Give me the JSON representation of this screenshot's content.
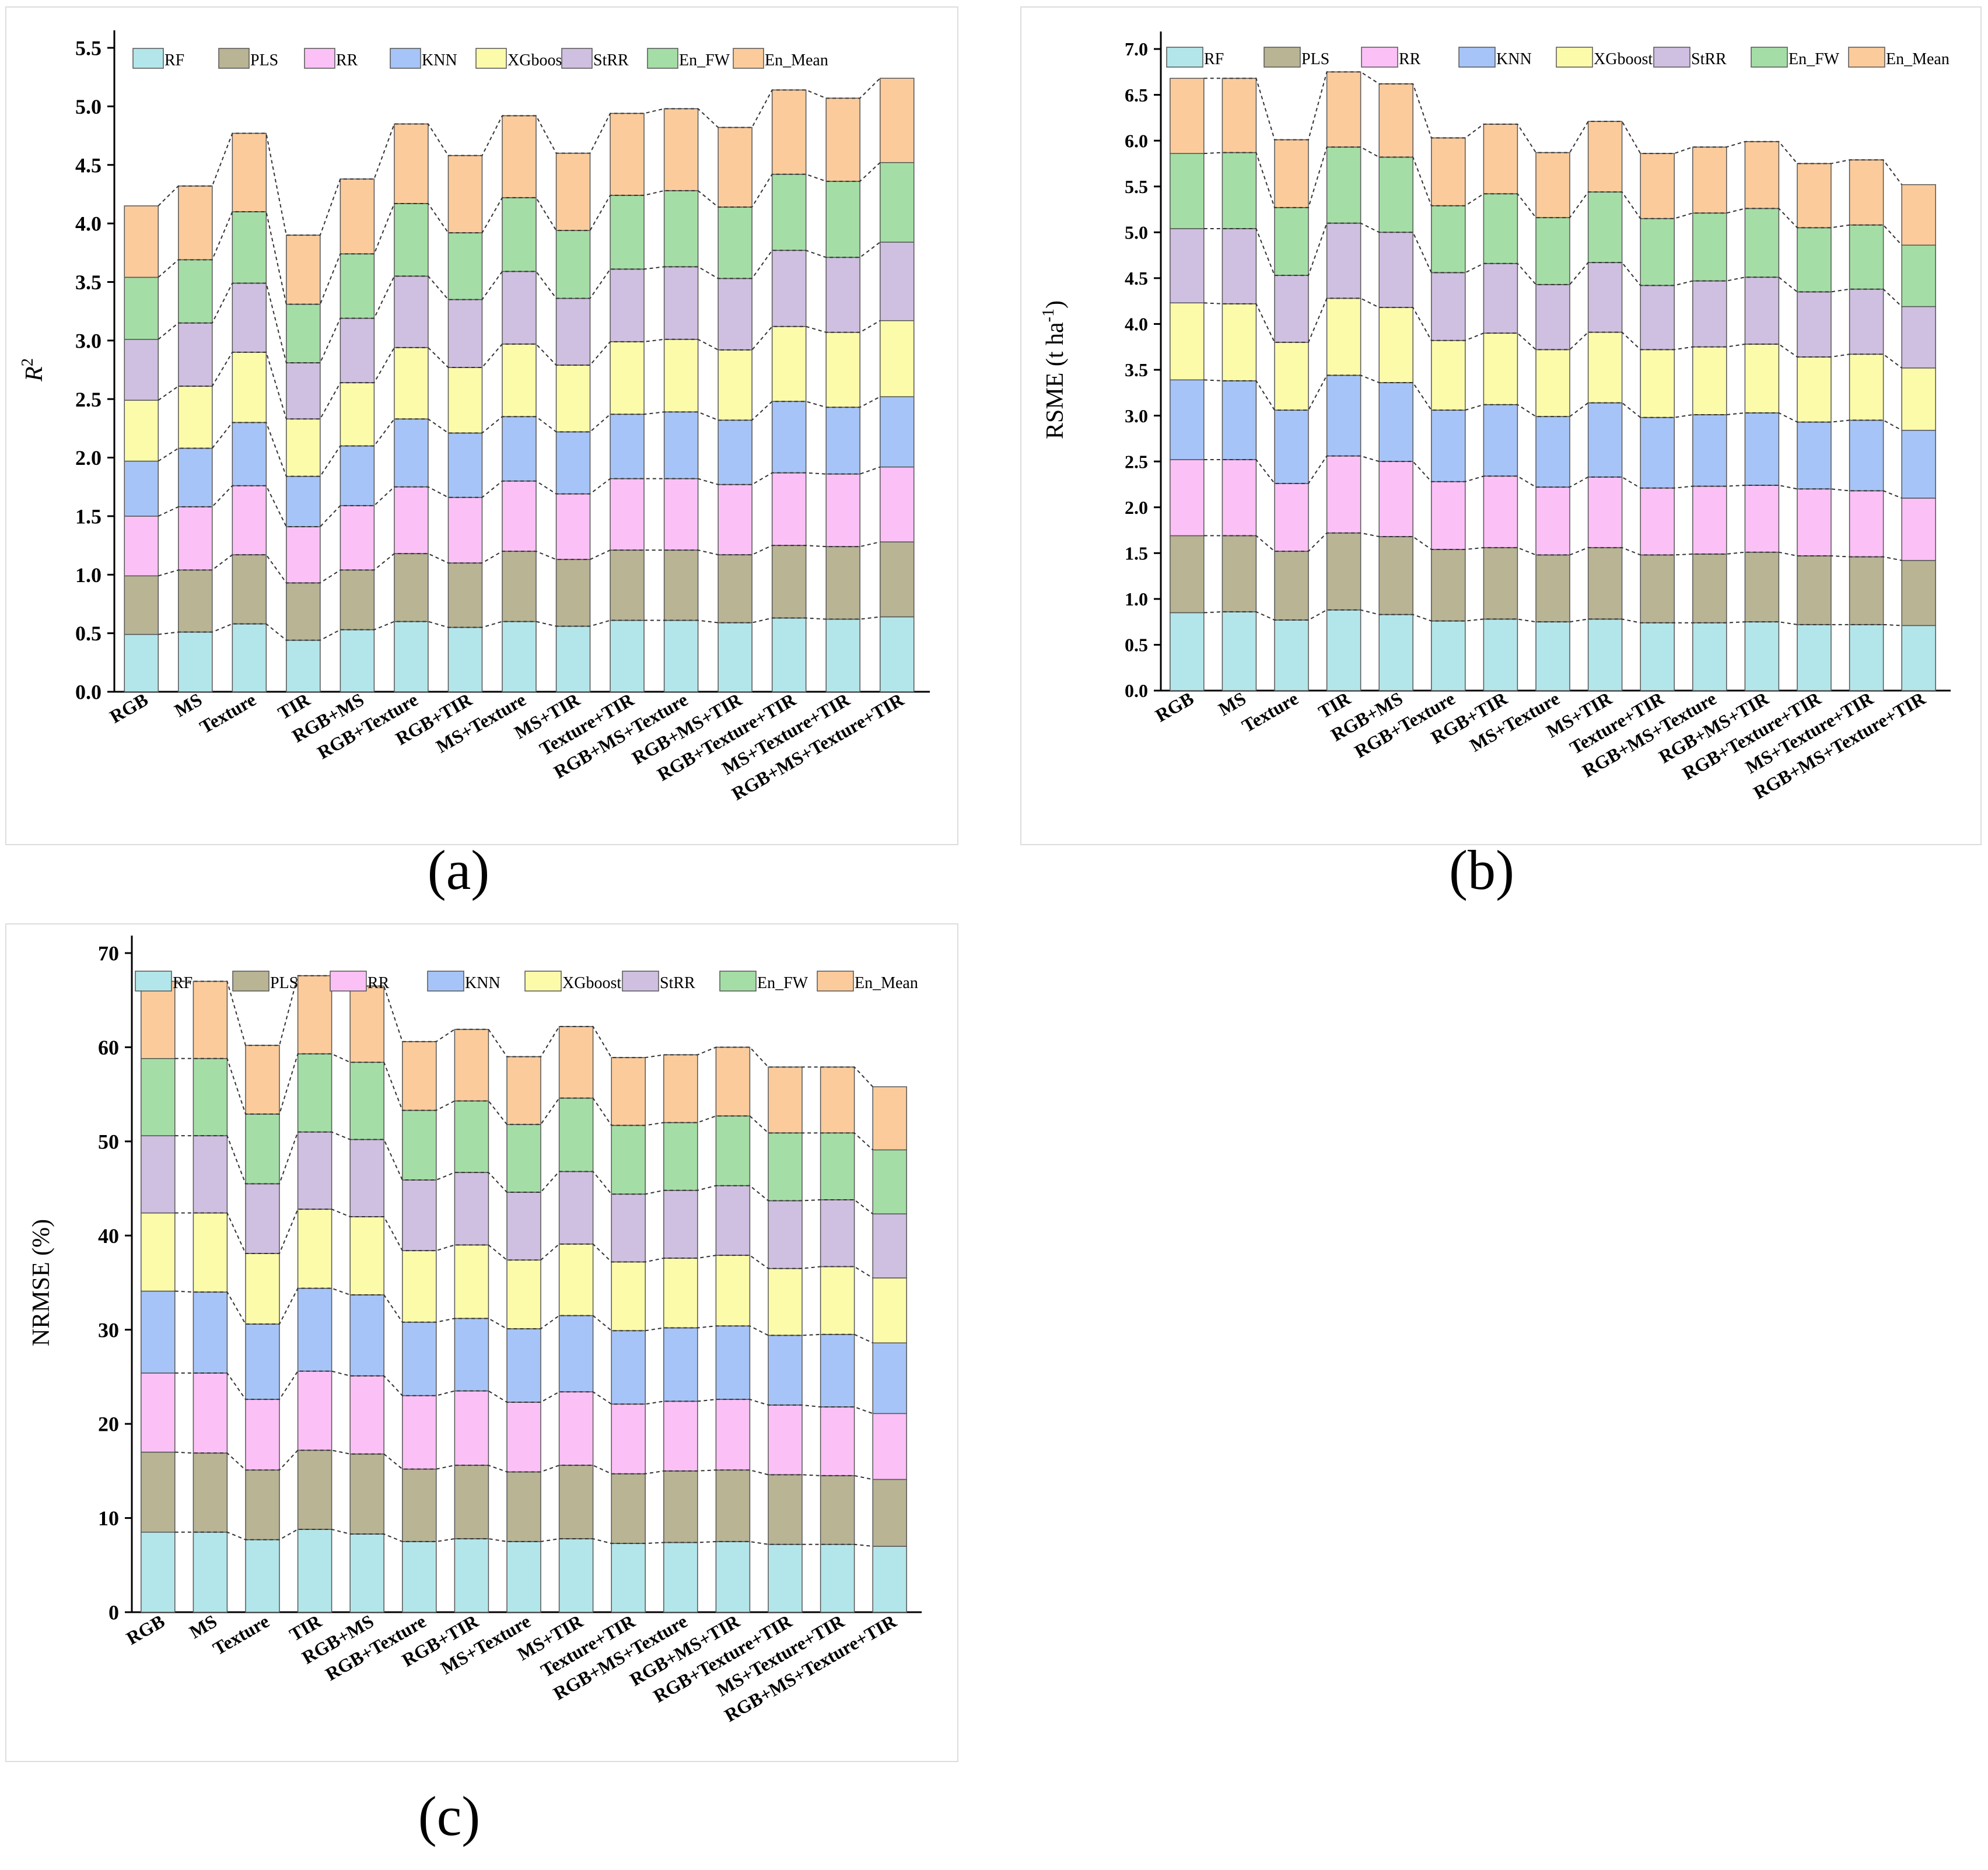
{
  "series_names": [
    "RF",
    "PLS",
    "RR",
    "KNN",
    "XGboost",
    "StRR",
    "En_FW",
    "En_Mean"
  ],
  "colors": [
    "#b3e6ea",
    "#b8b494",
    "#fbc0f6",
    "#a6c4f7",
    "#fbfba9",
    "#cfbfe0",
    "#a4dea6",
    "#fbcb9b"
  ],
  "categories": [
    "RGB",
    "MS",
    "Texture",
    "TIR",
    "RGB+MS",
    "RGB+Texture",
    "RGB+TIR",
    "MS+Texture",
    "MS+TIR",
    "Texture+TIR",
    "RGB+MS+Texture",
    "RGB+MS+TIR",
    "RGB+Texture+TIR",
    "MS+Texture+TIR",
    "RGB+MS+Texture+TIR"
  ],
  "chart_data": [
    {
      "type": "bar",
      "stacked": true,
      "panel_label": "(a)",
      "ylabel": "R",
      "ylabel_sup": "2",
      "ylim": [
        0,
        5.5
      ],
      "yticks": [
        "0.0",
        "0.5",
        "1.0",
        "1.5",
        "2.0",
        "2.5",
        "3.0",
        "3.5",
        "4.0",
        "4.5",
        "5.0",
        "5.5"
      ],
      "legend": "top",
      "categories": [
        "RGB",
        "MS",
        "Texture",
        "TIR",
        "RGB+MS",
        "RGB+Texture",
        "RGB+TIR",
        "MS+Texture",
        "MS+TIR",
        "Texture+TIR",
        "RGB+MS+Texture",
        "RGB+MS+TIR",
        "RGB+Texture+TIR",
        "MS+Texture+TIR",
        "RGB+MS+Texture+TIR"
      ],
      "series": [
        {
          "name": "RF",
          "values": [
            0.49,
            0.51,
            0.58,
            0.44,
            0.53,
            0.6,
            0.55,
            0.6,
            0.56,
            0.61,
            0.61,
            0.59,
            0.63,
            0.62,
            0.64
          ]
        },
        {
          "name": "PLS",
          "values": [
            0.5,
            0.53,
            0.59,
            0.49,
            0.51,
            0.58,
            0.55,
            0.6,
            0.57,
            0.6,
            0.6,
            0.58,
            0.62,
            0.62,
            0.64
          ]
        },
        {
          "name": "RR",
          "values": [
            0.51,
            0.54,
            0.59,
            0.48,
            0.55,
            0.57,
            0.56,
            0.6,
            0.56,
            0.61,
            0.61,
            0.6,
            0.62,
            0.62,
            0.64
          ]
        },
        {
          "name": "KNN",
          "values": [
            0.47,
            0.5,
            0.54,
            0.43,
            0.51,
            0.58,
            0.55,
            0.55,
            0.53,
            0.55,
            0.57,
            0.55,
            0.61,
            0.57,
            0.6
          ]
        },
        {
          "name": "XGboost",
          "values": [
            0.52,
            0.53,
            0.6,
            0.49,
            0.54,
            0.61,
            0.56,
            0.62,
            0.57,
            0.62,
            0.62,
            0.6,
            0.64,
            0.64,
            0.65
          ]
        },
        {
          "name": "StRR",
          "values": [
            0.52,
            0.54,
            0.59,
            0.48,
            0.55,
            0.61,
            0.58,
            0.62,
            0.57,
            0.62,
            0.62,
            0.61,
            0.65,
            0.64,
            0.67
          ]
        },
        {
          "name": "En_FW",
          "values": [
            0.53,
            0.54,
            0.61,
            0.5,
            0.55,
            0.62,
            0.57,
            0.63,
            0.58,
            0.63,
            0.65,
            0.61,
            0.65,
            0.65,
            0.68
          ]
        },
        {
          "name": "En_Mean",
          "values": [
            0.61,
            0.63,
            0.67,
            0.59,
            0.64,
            0.68,
            0.66,
            0.7,
            0.66,
            0.7,
            0.7,
            0.68,
            0.72,
            0.71,
            0.72
          ]
        }
      ]
    },
    {
      "type": "bar",
      "stacked": true,
      "panel_label": "(b)",
      "ylabel": "RSME (t ha",
      "ylabel_sup": "-1",
      "ylabel_tail": ")",
      "ylim": [
        0,
        7.0
      ],
      "yticks": [
        "0.0",
        "0.5",
        "1.0",
        "1.5",
        "2.0",
        "2.5",
        "3.0",
        "3.5",
        "4.0",
        "4.5",
        "5.0",
        "5.5",
        "6.0",
        "6.5",
        "7.0"
      ],
      "legend": "top",
      "categories": [
        "RGB",
        "MS",
        "Texture",
        "TIR",
        "RGB+MS",
        "RGB+Texture",
        "RGB+TIR",
        "MS+Texture",
        "MS+TIR",
        "Texture+TIR",
        "RGB+MS+Texture",
        "RGB+MS+TIR",
        "RGB+Texture+TIR",
        "MS+Texture+TIR",
        "RGB+MS+Texture+TIR"
      ],
      "series": [
        {
          "name": "RF",
          "values": [
            0.85,
            0.86,
            0.77,
            0.88,
            0.83,
            0.76,
            0.78,
            0.75,
            0.78,
            0.74,
            0.74,
            0.75,
            0.72,
            0.72,
            0.71
          ]
        },
        {
          "name": "PLS",
          "values": [
            0.84,
            0.83,
            0.75,
            0.84,
            0.85,
            0.78,
            0.78,
            0.73,
            0.78,
            0.74,
            0.75,
            0.76,
            0.75,
            0.74,
            0.71
          ]
        },
        {
          "name": "RR",
          "values": [
            0.83,
            0.83,
            0.74,
            0.84,
            0.82,
            0.74,
            0.78,
            0.74,
            0.77,
            0.73,
            0.74,
            0.73,
            0.73,
            0.72,
            0.68
          ]
        },
        {
          "name": "KNN",
          "values": [
            0.87,
            0.86,
            0.8,
            0.88,
            0.86,
            0.78,
            0.78,
            0.77,
            0.81,
            0.77,
            0.78,
            0.79,
            0.73,
            0.77,
            0.74
          ]
        },
        {
          "name": "XGboost",
          "values": [
            0.84,
            0.84,
            0.74,
            0.84,
            0.82,
            0.76,
            0.78,
            0.73,
            0.77,
            0.74,
            0.74,
            0.75,
            0.71,
            0.72,
            0.68
          ]
        },
        {
          "name": "StRR",
          "values": [
            0.81,
            0.82,
            0.73,
            0.82,
            0.82,
            0.74,
            0.76,
            0.71,
            0.76,
            0.7,
            0.72,
            0.73,
            0.71,
            0.71,
            0.67
          ]
        },
        {
          "name": "En_FW",
          "values": [
            0.82,
            0.83,
            0.74,
            0.83,
            0.82,
            0.73,
            0.76,
            0.73,
            0.77,
            0.73,
            0.74,
            0.75,
            0.7,
            0.7,
            0.67
          ]
        },
        {
          "name": "En_Mean",
          "values": [
            0.82,
            0.81,
            0.74,
            0.82,
            0.8,
            0.74,
            0.76,
            0.71,
            0.77,
            0.71,
            0.72,
            0.73,
            0.7,
            0.71,
            0.66
          ]
        }
      ]
    },
    {
      "type": "bar",
      "stacked": true,
      "panel_label": "(c)",
      "ylabel": "NRMSE (%)",
      "ylim": [
        0,
        70
      ],
      "yticks": [
        "0",
        "10",
        "20",
        "30",
        "40",
        "50",
        "60",
        "70"
      ],
      "legend": "top",
      "categories": [
        "RGB",
        "MS",
        "Texture",
        "TIR",
        "RGB+MS",
        "RGB+Texture",
        "RGB+TIR",
        "MS+Texture",
        "MS+TIR",
        "Texture+TIR",
        "RGB+MS+Texture",
        "RGB+MS+TIR",
        "RGB+Texture+TIR",
        "MS+Texture+TIR",
        "RGB+MS+Texture+TIR"
      ],
      "series": [
        {
          "name": "RF",
          "values": [
            8.5,
            8.5,
            7.7,
            8.8,
            8.3,
            7.5,
            7.8,
            7.5,
            7.8,
            7.3,
            7.4,
            7.5,
            7.2,
            7.2,
            7.0
          ]
        },
        {
          "name": "PLS",
          "values": [
            8.5,
            8.4,
            7.4,
            8.4,
            8.5,
            7.7,
            7.8,
            7.4,
            7.8,
            7.4,
            7.6,
            7.6,
            7.4,
            7.3,
            7.1
          ]
        },
        {
          "name": "RR",
          "values": [
            8.4,
            8.5,
            7.5,
            8.4,
            8.3,
            7.8,
            7.9,
            7.4,
            7.8,
            7.4,
            7.4,
            7.5,
            7.4,
            7.3,
            7.0
          ]
        },
        {
          "name": "KNN",
          "values": [
            8.7,
            8.6,
            8.0,
            8.8,
            8.6,
            7.8,
            7.7,
            7.8,
            8.1,
            7.8,
            7.8,
            7.8,
            7.4,
            7.7,
            7.5
          ]
        },
        {
          "name": "XGboost",
          "values": [
            8.3,
            8.4,
            7.5,
            8.4,
            8.3,
            7.6,
            7.8,
            7.3,
            7.6,
            7.3,
            7.4,
            7.5,
            7.1,
            7.2,
            6.9
          ]
        },
        {
          "name": "StRR",
          "values": [
            8.2,
            8.2,
            7.4,
            8.2,
            8.2,
            7.5,
            7.7,
            7.2,
            7.7,
            7.2,
            7.2,
            7.4,
            7.2,
            7.1,
            6.8
          ]
        },
        {
          "name": "En_FW",
          "values": [
            8.2,
            8.2,
            7.4,
            8.3,
            8.2,
            7.4,
            7.6,
            7.2,
            7.8,
            7.3,
            7.2,
            7.4,
            7.2,
            7.1,
            6.8
          ]
        },
        {
          "name": "En_Mean",
          "values": [
            8.2,
            8.2,
            7.3,
            8.3,
            8.1,
            7.3,
            7.6,
            7.2,
            7.6,
            7.2,
            7.2,
            7.3,
            7.0,
            7.0,
            6.7
          ]
        }
      ]
    }
  ]
}
